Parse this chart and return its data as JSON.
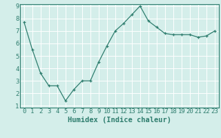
{
  "x": [
    0,
    1,
    2,
    3,
    4,
    5,
    6,
    7,
    8,
    9,
    10,
    11,
    12,
    13,
    14,
    15,
    16,
    17,
    18,
    19,
    20,
    21,
    22,
    23
  ],
  "y": [
    7.7,
    5.5,
    3.6,
    2.6,
    2.6,
    1.4,
    2.3,
    3.0,
    3.0,
    4.5,
    5.8,
    7.0,
    7.6,
    8.3,
    9.0,
    7.8,
    7.3,
    6.8,
    6.7,
    6.7,
    6.7,
    6.5,
    6.6,
    7.0
  ],
  "line_color": "#2e7d6e",
  "marker": "+",
  "marker_size": 3,
  "bg_color": "#d4eeea",
  "grid_color": "#ffffff",
  "axis_color": "#2e7d6e",
  "xlabel": "Humidex (Indice chaleur)",
  "ylim": [
    1,
    9
  ],
  "xlim_min": -0.5,
  "xlim_max": 23.5,
  "yticks": [
    1,
    2,
    3,
    4,
    5,
    6,
    7,
    8,
    9
  ],
  "xticks": [
    0,
    1,
    2,
    3,
    4,
    5,
    6,
    7,
    8,
    9,
    10,
    11,
    12,
    13,
    14,
    15,
    16,
    17,
    18,
    19,
    20,
    21,
    22,
    23
  ],
  "font_size": 6.5,
  "xlabel_fontsize": 7.5
}
